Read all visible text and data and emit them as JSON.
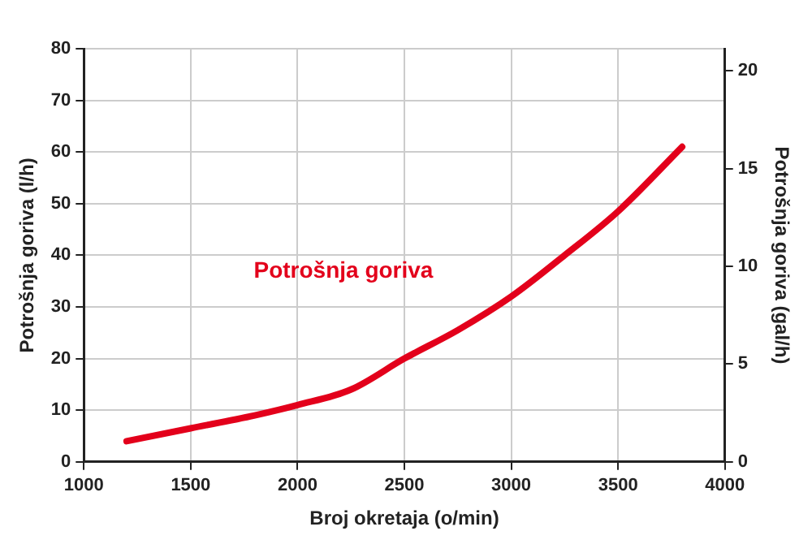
{
  "chart_data": {
    "type": "line",
    "xlabel": "Broj okretaja (o/min)",
    "ylabel": "Potrošnja goriva (l/h)",
    "y2label": "Potrošnja goriva (gal/h)",
    "x": [
      1200,
      1500,
      1800,
      2000,
      2250,
      2500,
      2750,
      3000,
      3250,
      3500,
      3800
    ],
    "series": [
      {
        "name": "Potrošnja goriva",
        "color": "#e3001b",
        "values": [
          4,
          6.5,
          9,
          11,
          14,
          20,
          25.5,
          32,
          40,
          48.5,
          61
        ]
      }
    ],
    "xlim": [
      1000,
      4000
    ],
    "xticks": [
      1000,
      1500,
      2000,
      2500,
      3000,
      3500,
      4000
    ],
    "ylim": [
      0,
      80
    ],
    "yticks": [
      0,
      10,
      20,
      30,
      40,
      50,
      60,
      70,
      80
    ],
    "y2lim": [
      0,
      21.13
    ],
    "y2ticks": [
      0,
      5,
      10,
      15,
      20
    ],
    "grid": true,
    "legend": false,
    "marker": "none",
    "line_style": "solid"
  }
}
